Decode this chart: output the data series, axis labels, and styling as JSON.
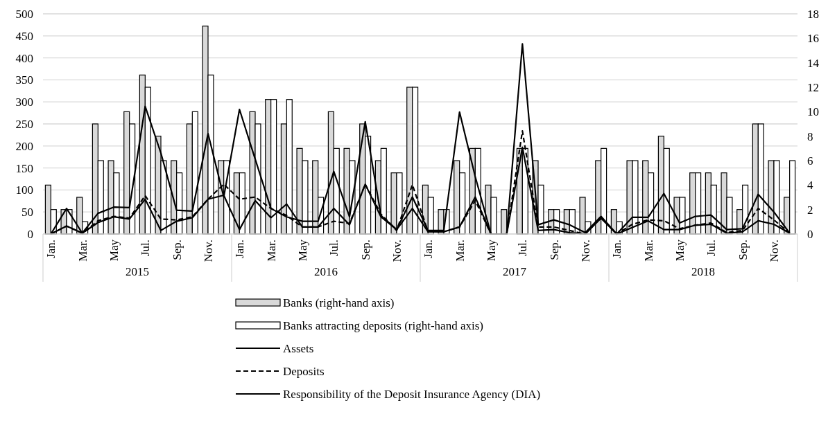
{
  "chart_data": {
    "type": "bar",
    "categories": [
      "Jan.",
      null,
      "Mar.",
      null,
      "May",
      null,
      "Jul.",
      null,
      "Sep.",
      null,
      "Nov.",
      null,
      "Jan.",
      null,
      "Mar.",
      null,
      "May",
      null,
      "Jul.",
      null,
      "Sep.",
      null,
      "Nov.",
      null,
      "Jan.",
      null,
      "Mar.",
      null,
      "May",
      null,
      "Jul.",
      null,
      "Sep.",
      null,
      "Nov.",
      null,
      "Jan.",
      null,
      "Mar.",
      null,
      "May",
      null,
      "Jul.",
      null,
      "Sep.",
      null,
      "Nov.",
      null
    ],
    "annotations": [
      "2015",
      "2016",
      "2017",
      "2018"
    ],
    "series": [
      {
        "name": "Banks (right-hand axis)",
        "axis": "y2",
        "color": "#d9d9d9",
        "values": [
          4,
          2,
          3,
          9,
          6,
          10,
          13,
          8,
          6,
          9,
          17,
          6,
          5,
          10,
          11,
          9,
          7,
          6,
          10,
          7,
          9,
          6,
          5,
          12,
          4,
          2,
          6,
          7,
          4,
          2,
          7,
          6,
          2,
          2,
          3,
          6,
          2,
          6,
          6,
          8,
          3,
          5,
          5,
          5,
          2,
          9,
          6,
          3
        ]
      },
      {
        "name": "Banks attracting deposits (right-hand axis)",
        "axis": "y2",
        "color": "#ffffff",
        "values": [
          2,
          2,
          1,
          6,
          5,
          9,
          12,
          6,
          5,
          10,
          13,
          6,
          5,
          9,
          11,
          11,
          6,
          3,
          7,
          6,
          8,
          7,
          5,
          12,
          3,
          2,
          5,
          7,
          3,
          0,
          7,
          4,
          2,
          2,
          1,
          7,
          1,
          6,
          5,
          7,
          3,
          5,
          4,
          3,
          4,
          9,
          6,
          6
        ]
      },
      {
        "name": "Assets",
        "type": "line",
        "color": "#000000",
        "line_style": "solid",
        "values": [
          0,
          58,
          2,
          47,
          61,
          60,
          290,
          184,
          54,
          52,
          228,
          84,
          283,
          170,
          58,
          39,
          29,
          29,
          142,
          39,
          255,
          42,
          10,
          84,
          8,
          8,
          277,
          130,
          0,
          0,
          432,
          21,
          32,
          21,
          3,
          40,
          0,
          38,
          38,
          92,
          25,
          40,
          43,
          10,
          12,
          90,
          50,
          2
        ]
      },
      {
        "name": "Deposits",
        "type": "line",
        "color": "#000000",
        "line_style": "dashed",
        "values": [
          0,
          18,
          2,
          30,
          40,
          36,
          87,
          34,
          32,
          39,
          79,
          113,
          79,
          84,
          58,
          42,
          16,
          16,
          29,
          24,
          113,
          45,
          8,
          112,
          5,
          5,
          16,
          76,
          0,
          0,
          234,
          16,
          16,
          8,
          0,
          38,
          0,
          22,
          32,
          30,
          12,
          20,
          25,
          3,
          8,
          58,
          32,
          2
        ]
      },
      {
        "name": "Responsibility of the Deposit Insurance Agency (DIA)",
        "type": "line",
        "color": "#000000",
        "line_style": "solid",
        "values": [
          0,
          18,
          2,
          26,
          39,
          34,
          79,
          8,
          29,
          37,
          79,
          88,
          10,
          76,
          37,
          68,
          16,
          16,
          58,
          21,
          113,
          39,
          10,
          58,
          5,
          5,
          16,
          84,
          0,
          0,
          197,
          8,
          10,
          3,
          0,
          36,
          0,
          15,
          30,
          10,
          10,
          20,
          22,
          2,
          5,
          30,
          22,
          2
        ]
      }
    ],
    "ylim": [
      0,
      500
    ],
    "yticks": [
      0,
      50,
      100,
      150,
      200,
      250,
      300,
      350,
      400,
      450,
      500
    ],
    "y2lim": [
      0,
      18
    ],
    "y2ticks": [
      0,
      2,
      4,
      6,
      8,
      10,
      12,
      14,
      16,
      18
    ],
    "grid": "y",
    "legend": "bottom"
  }
}
